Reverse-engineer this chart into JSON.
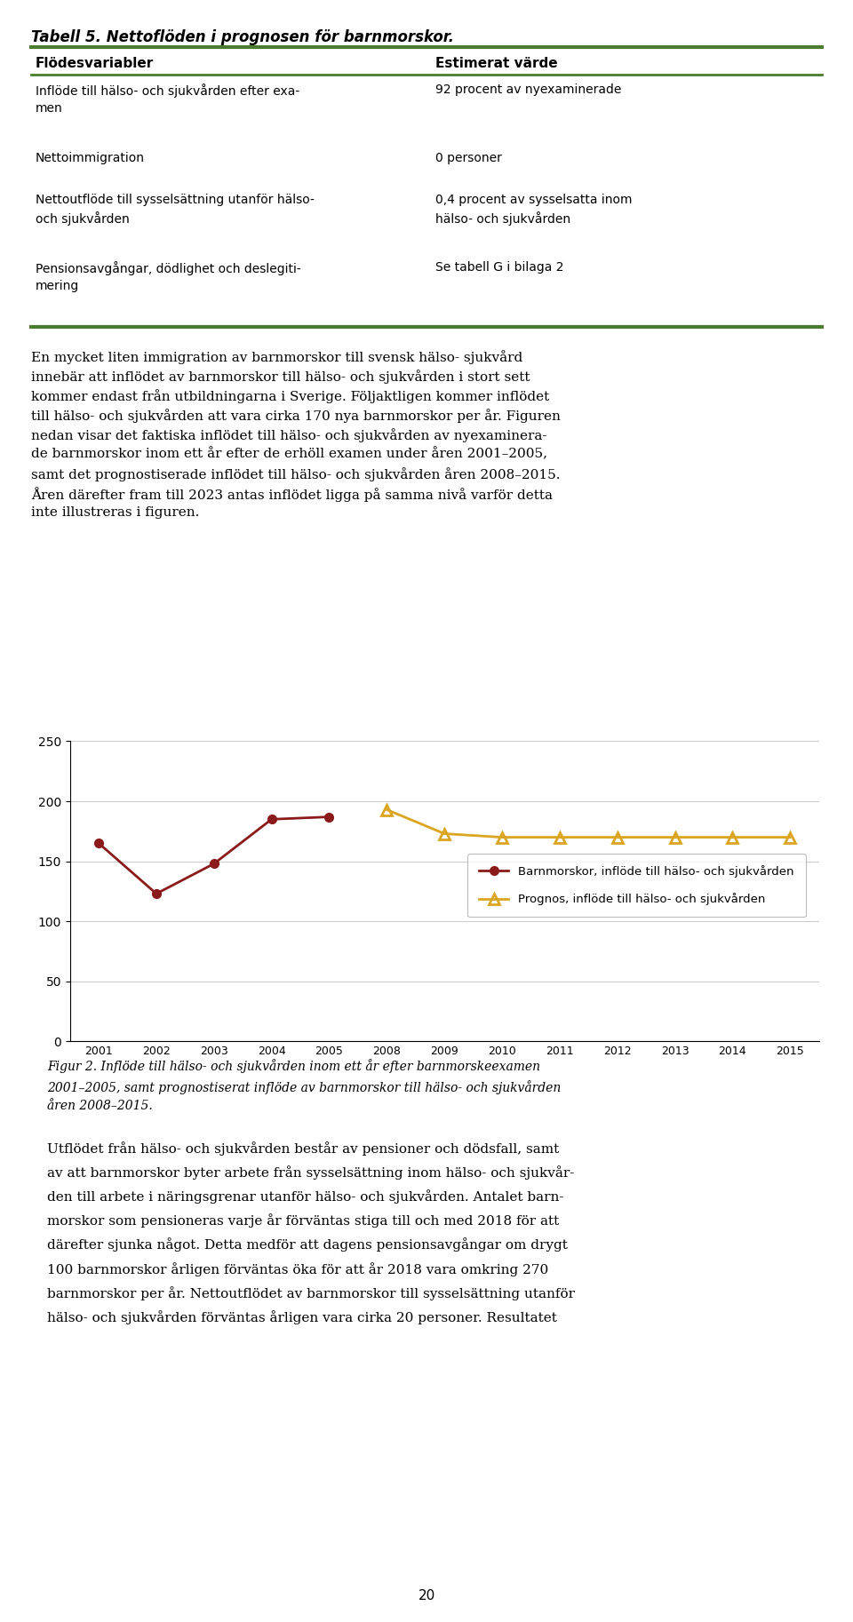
{
  "title": "Tabell 5. Nettoflöden i prognosen för barnmorskor.",
  "table_headers": [
    "Flödesvariabler",
    "Estimerat värde"
  ],
  "table_rows": [
    [
      "Inflöde till hälso- och sjukvården efter exa-\nmen",
      "92 procent av nyexaminerade"
    ],
    [
      "Nettoimmigration",
      "0 personer"
    ],
    [
      "Nettoutflöde till sysselsättning utanför hälso-\noch sjukvården",
      "0,4 procent av sysselsatta inom\nhälso- och sjukvården"
    ],
    [
      "Pensionsavgångar, dödlighet och deslegiti-\nmering",
      "Se tabell G i bilaga 2"
    ]
  ],
  "green_color": "#4a7c2f",
  "actual_years": [
    2001,
    2002,
    2003,
    2004,
    2005
  ],
  "actual_values": [
    165,
    123,
    148,
    185,
    187
  ],
  "prognos_years": [
    2008,
    2009,
    2010,
    2011,
    2012,
    2013,
    2014,
    2015
  ],
  "prognos_values": [
    193,
    173,
    170,
    170,
    170,
    170,
    170,
    170
  ],
  "actual_color": "#8B1A1A",
  "prognos_color": "#DAA520",
  "actual_label": "Barnmorskor, inflöde till hälso- och sjukvården",
  "prognos_label": "Prognos, inflöde till hälso- och sjukvården",
  "ylim": [
    0,
    250
  ],
  "yticks": [
    0,
    50,
    100,
    150,
    200,
    250
  ],
  "x_labels": [
    "2001",
    "2002",
    "2003",
    "2004",
    "2005",
    "2008",
    "2009",
    "2010",
    "2011",
    "2012",
    "2013",
    "2014",
    "2015"
  ],
  "fig_caption": "Figur 2. Inflöde till hälso- och sjukvården inom ett år efter barnmorskeexamen\n2001–2005, samt prognostiserat inflöde av barnmorskor till hälso- och sjukvården\nåren 2008–2015.",
  "page_number": "20",
  "bg_color": "#ffffff",
  "body1_lines": [
    "En mycket liten immigration av barnmorskor till svensk hälso- sjukvård",
    "innebär att inflödet av barnmorskor till hälso- och sjukvården i stort sett",
    "kommer endast från utbildningarna i Sverige. Följaktligen kommer inflödet",
    "till hälso- och sjukvården att vara cirka 170 nya barnmorskor per år. Figuren",
    "nedan visar det faktiska inflödet till hälso- och sjukvården av nyexaminera-",
    "de barnmorskor inom ett år efter de erhöll examen under åren 2001–2005,",
    "samt det prognostiserade inflödet till hälso- och sjukvården åren 2008–2015.",
    "Åren därefter fram till 2023 antas inflödet ligga på samma nivå varför detta",
    "inte illustreras i figuren."
  ],
  "body2_lines": [
    "Utflödet från hälso- och sjukvården består av pensioner och dödsfall, samt",
    "av att barnmorskor byter arbete från sysselsättning inom hälso- och sjukvår-",
    "den till arbete i näringsgrenar utanför hälso- och sjukvården. Antalet barn-",
    "morskor som pensioneras varje år förväntas stiga till och med 2018 för att",
    "därefter sjunka något. Detta medför att dagens pensionsavgångar om drygt",
    "100 barnmorskor årligen förväntas öka för att år 2018 vara omkring 270",
    "barnmorskor per år. Nettoutflödet av barnmorskor till sysselsättning utanför",
    "hälso- och sjukvården förväntas årligen vara cirka 20 personer. Resultatet"
  ],
  "rows_data": [
    {
      "y": 1732,
      "left": "Inflöde till hälso- och sjukvården efter exa-\nmen",
      "right": "92 procent av nyexaminerade"
    },
    {
      "y": 1655,
      "left": "Nettoimmigration",
      "right": "0 personer"
    },
    {
      "y": 1608,
      "left": "Nettoutflöde till sysselsättning utanför hälso-\noch sjukvården",
      "right": "0,4 procent av sysselsatta inom\nhälso- och sjukvården"
    },
    {
      "y": 1532,
      "left": "Pensionsavgångar, dödlighet och deslegiti-\nmering",
      "right": "Se tabell G i bilaga 2"
    }
  ]
}
